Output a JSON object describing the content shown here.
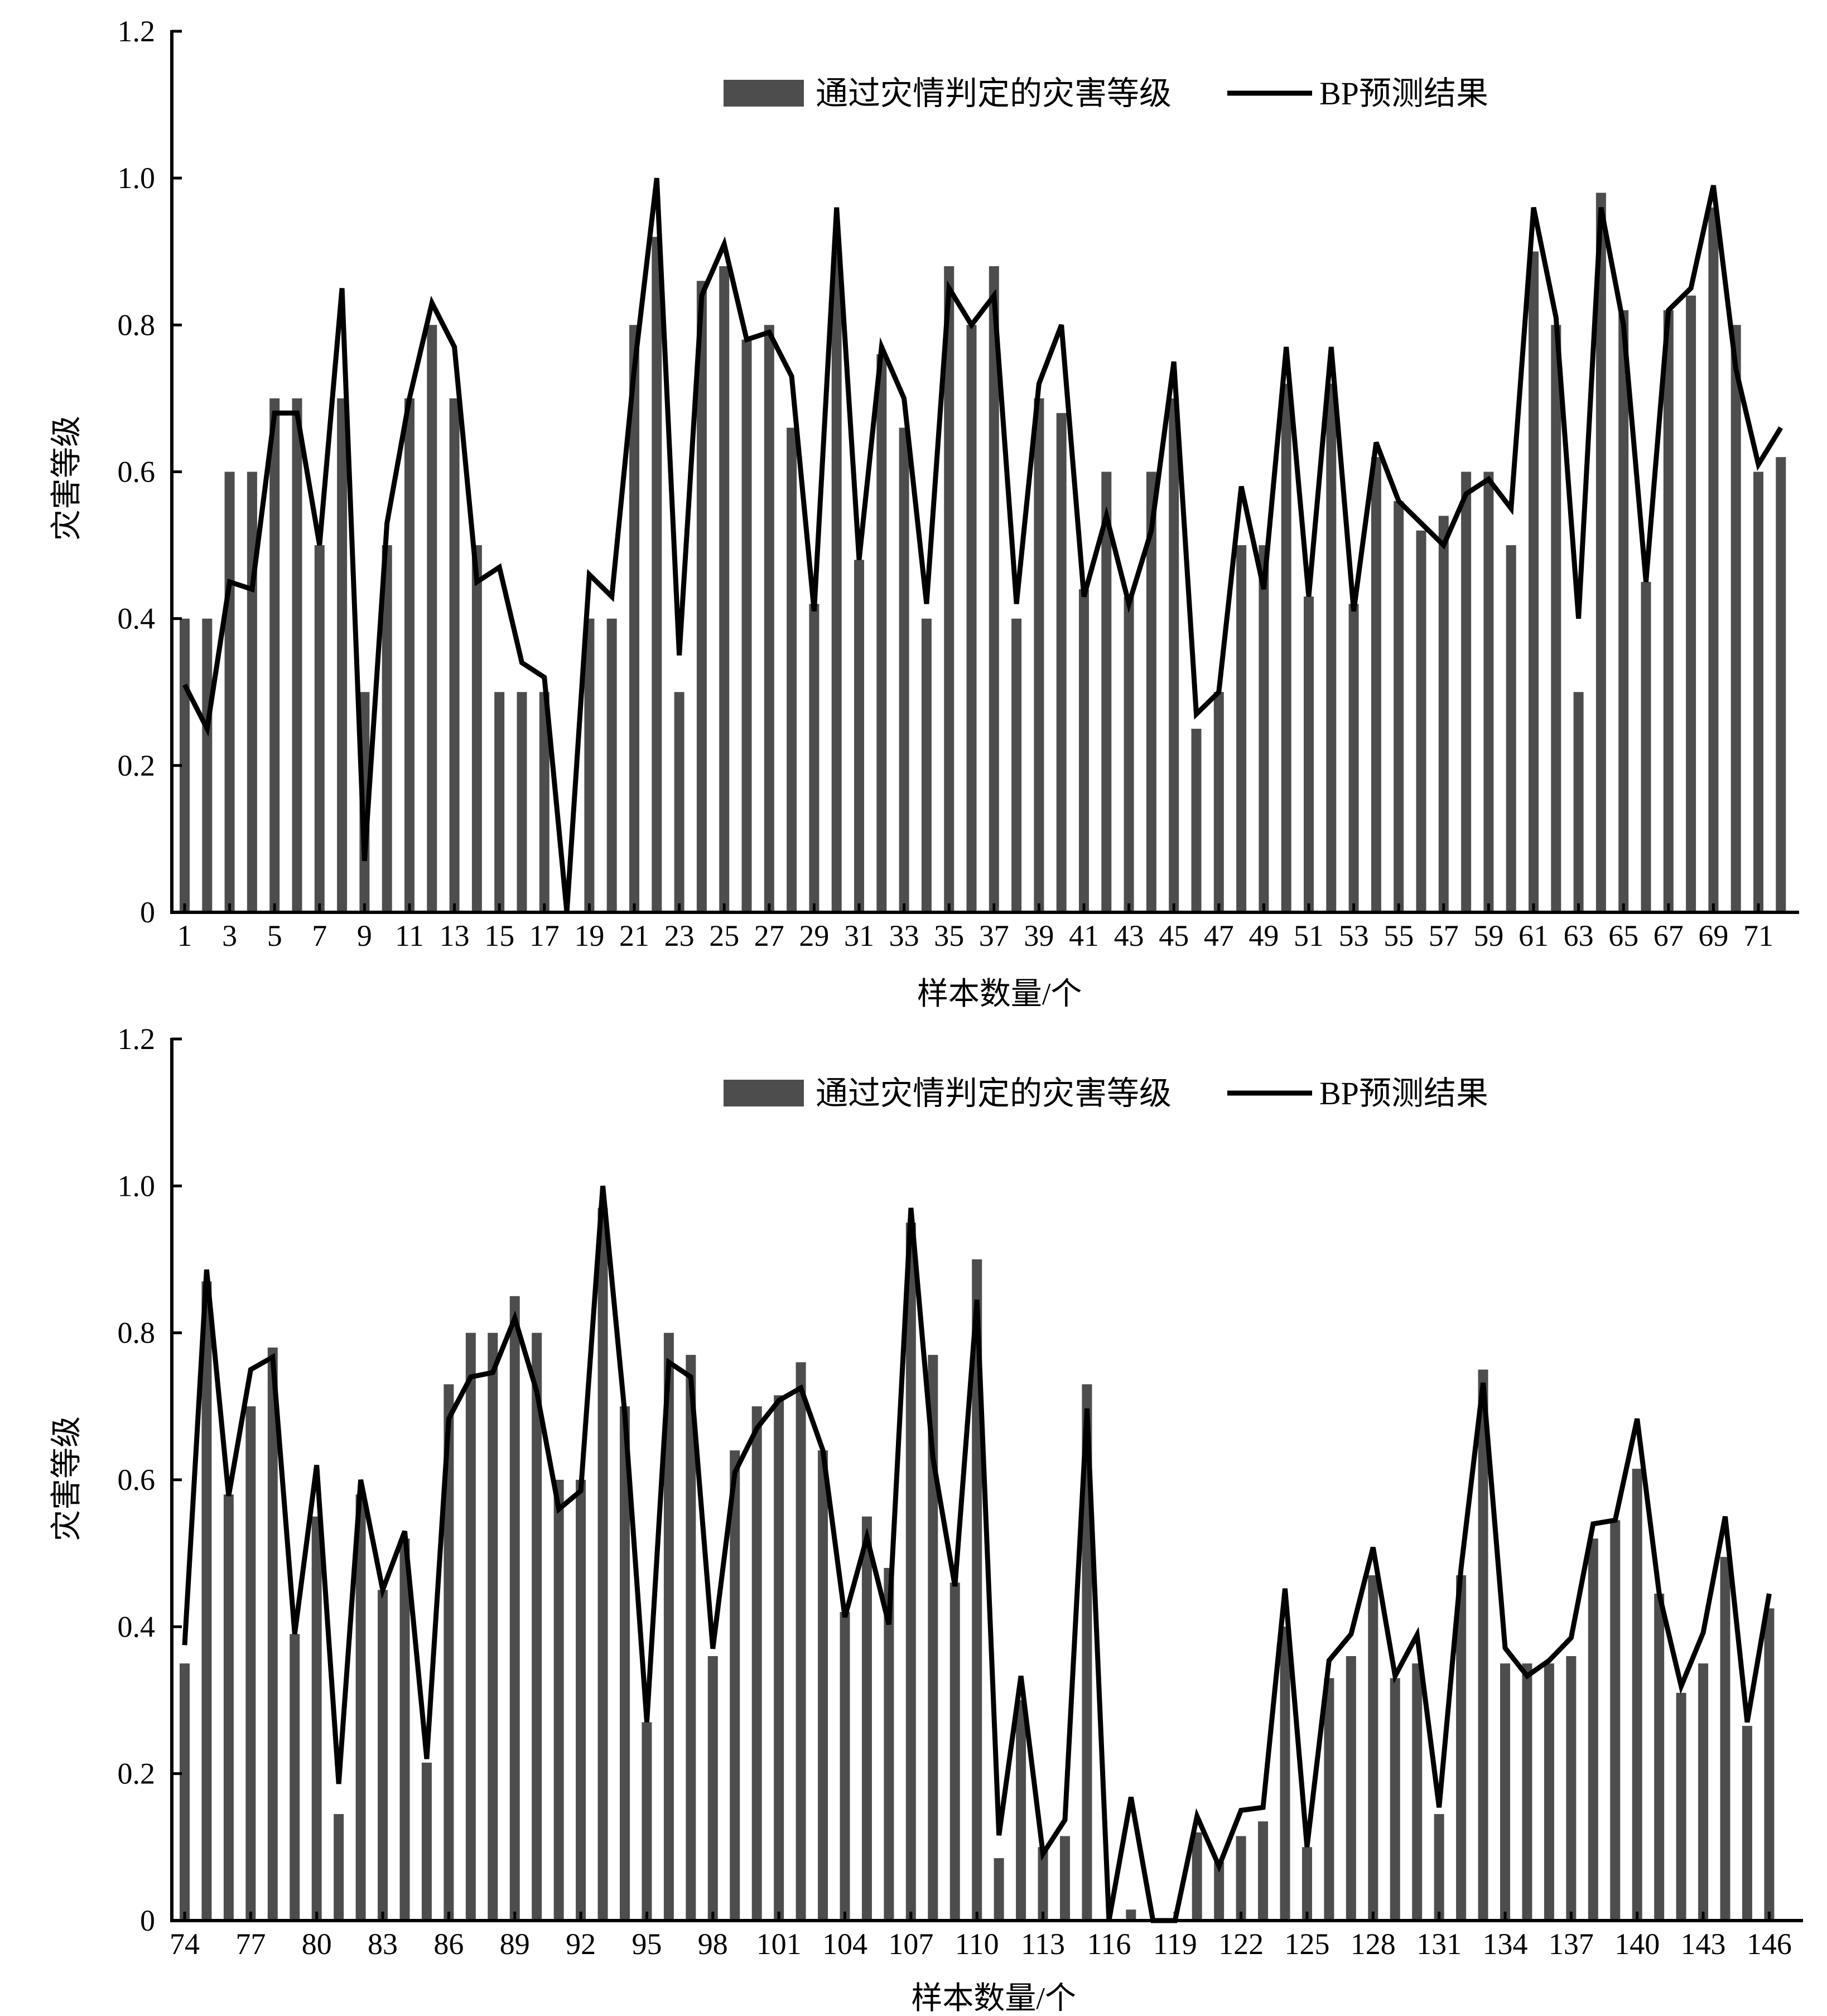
{
  "chart_data": [
    {
      "type": "bar",
      "ylabel": "灾害等级",
      "xlabel": "样本数量/个",
      "ylim": [
        0,
        1.2
      ],
      "yticks": [
        "0",
        "0.2",
        "0.4",
        "0.6",
        "0.8",
        "1.0",
        "1.2"
      ],
      "ytick_values": [
        0,
        0.2,
        0.4,
        0.6,
        0.8,
        1.0,
        1.2
      ],
      "x_start": 1,
      "x_label_step": 2,
      "legend": {
        "position": "top-center",
        "bar_label": "通过灾情判定的灾害等级",
        "line_label": "BP预测结果"
      },
      "series": [
        {
          "name": "通过灾情判定的灾害等级",
          "kind": "bar",
          "color": "#4d4d4d",
          "values": [
            0.4,
            0.4,
            0.6,
            0.6,
            0.7,
            0.7,
            0.5,
            0.7,
            0.3,
            0.5,
            0.7,
            0.8,
            0.7,
            0.5,
            0.3,
            0.3,
            0.3,
            0,
            0.4,
            0.4,
            0.8,
            0.92,
            0.3,
            0.86,
            0.88,
            0.78,
            0.8,
            0.66,
            0.42,
            0.9,
            0.48,
            0.76,
            0.66,
            0.4,
            0.88,
            0.8,
            0.88,
            0.4,
            0.7,
            0.68,
            0.44,
            0.6,
            0.43,
            0.6,
            0.7,
            0.25,
            0.3,
            0.5,
            0.5,
            0.72,
            0.43,
            0.72,
            0.42,
            0.62,
            0.56,
            0.52,
            0.54,
            0.6,
            0.6,
            0.5,
            0.9,
            0.8,
            0.3,
            0.98,
            0.82,
            0.45,
            0.82,
            0.84,
            0.96,
            0.8,
            0.6,
            0.62
          ]
        },
        {
          "name": "BP预测结果",
          "kind": "line",
          "color": "#000000",
          "values": [
            0.31,
            0.25,
            0.45,
            0.44,
            0.68,
            0.68,
            0.5,
            0.85,
            0.07,
            0.53,
            0.7,
            0.83,
            0.77,
            0.45,
            0.47,
            0.34,
            0.32,
            0,
            0.46,
            0.43,
            0.74,
            1.0,
            0.35,
            0.84,
            0.91,
            0.78,
            0.79,
            0.73,
            0.41,
            0.96,
            0.48,
            0.77,
            0.7,
            0.42,
            0.85,
            0.8,
            0.84,
            0.42,
            0.72,
            0.8,
            0.43,
            0.54,
            0.42,
            0.52,
            0.75,
            0.27,
            0.3,
            0.58,
            0.44,
            0.77,
            0.43,
            0.77,
            0.41,
            0.64,
            0.56,
            0.53,
            0.5,
            0.57,
            0.59,
            0.55,
            0.96,
            0.81,
            0.4,
            0.96,
            0.8,
            0.45,
            0.82,
            0.85,
            0.99,
            0.74,
            0.61,
            0.66
          ]
        }
      ]
    },
    {
      "type": "bar",
      "ylabel": "灾害等级",
      "xlabel": "样本数量/个",
      "ylim": [
        0,
        1.2
      ],
      "yticks": [
        "0",
        "0.2",
        "0.4",
        "0.6",
        "0.8",
        "1.0",
        "1.2"
      ],
      "ytick_values": [
        0,
        0.2,
        0.4,
        0.6,
        0.8,
        1.0,
        1.2
      ],
      "x_start": 74,
      "x_label_step": 3,
      "legend": {
        "position": "top-center",
        "bar_label": "通过灾情判定的灾害等级",
        "line_label": "BP预测结果"
      },
      "series": [
        {
          "name": "通过灾情判定的灾害等级",
          "kind": "bar",
          "color": "#4d4d4d",
          "values": [
            0.35,
            0.87,
            0.58,
            0.7,
            0.78,
            0.39,
            0.55,
            0.145,
            0.58,
            0.45,
            0.52,
            0.215,
            0.73,
            0.8,
            0.8,
            0.85,
            0.8,
            0.6,
            0.6,
            0.97,
            0.7,
            0.27,
            0.8,
            0.77,
            0.36,
            0.64,
            0.7,
            0.715,
            0.76,
            0.64,
            0.42,
            0.55,
            0.48,
            0.95,
            0.77,
            0.46,
            0.9,
            0.085,
            0.3,
            0.1,
            0.115,
            0.73,
            0,
            0.015,
            0,
            0,
            0.12,
            0.08,
            0.115,
            0.135,
            0.4,
            0.1,
            0.33,
            0.36,
            0.47,
            0.33,
            0.35,
            0.145,
            0.47,
            0.75,
            0.35,
            0.35,
            0.35,
            0.36,
            0.52,
            0.545,
            0.615,
            0.445,
            0.31,
            0.35,
            0.495,
            0.265,
            0.425
          ]
        },
        {
          "name": "BP预测结果",
          "kind": "line",
          "color": "#000000",
          "values": [
            0.375,
            0.886,
            0.578,
            0.75,
            0.767,
            0.39,
            0.62,
            0.186,
            0.6,
            0.45,
            0.53,
            0.22,
            0.683,
            0.74,
            0.746,
            0.82,
            0.72,
            0.56,
            0.585,
            1.0,
            0.69,
            0.27,
            0.76,
            0.74,
            0.37,
            0.61,
            0.67,
            0.708,
            0.725,
            0.64,
            0.413,
            0.522,
            0.403,
            0.97,
            0.63,
            0.455,
            0.845,
            0.116,
            0.333,
            0.091,
            0.137,
            0.697,
            0,
            0.168,
            0,
            0,
            0.142,
            0.074,
            0.15,
            0.154,
            0.452,
            0.1,
            0.354,
            0.39,
            0.508,
            0.333,
            0.389,
            0.154,
            0.48,
            0.732,
            0.371,
            0.333,
            0.354,
            0.385,
            0.54,
            0.545,
            0.683,
            0.445,
            0.319,
            0.392,
            0.55,
            0.27,
            0.445
          ]
        }
      ]
    }
  ]
}
